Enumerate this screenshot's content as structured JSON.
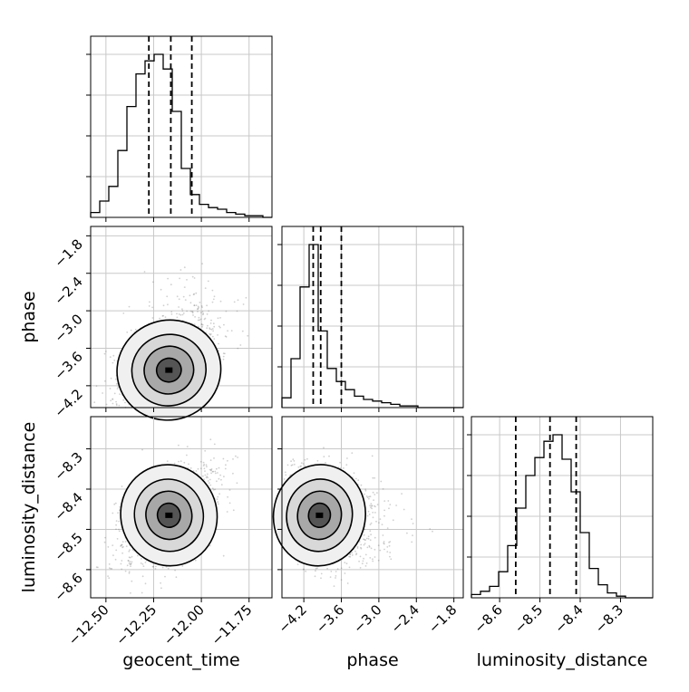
{
  "chart_data": {
    "type": "corner",
    "parameters": [
      "geocent_time",
      "phase",
      "luminosity_distance"
    ],
    "axes": {
      "geocent_time": {
        "range": [
          -12.58,
          -11.63
        ],
        "ticks": [
          -12.5,
          -12.25,
          -12.0,
          -11.75
        ],
        "tick_labels": [
          "−12.50",
          "−12.25",
          "−12.00",
          "−11.75"
        ]
      },
      "phase": {
        "range": [
          -4.55,
          -1.65
        ],
        "ticks": [
          -4.2,
          -3.6,
          -3.0,
          -2.4,
          -1.8
        ],
        "tick_labels": [
          "−4.2",
          "−3.6",
          "−3.0",
          "−2.4",
          "−1.8"
        ]
      },
      "luminosity_distance": {
        "range": [
          -8.67,
          -8.22
        ],
        "ticks": [
          -8.6,
          -8.5,
          -8.4,
          -8.3
        ],
        "tick_labels": [
          "−8.6",
          "−8.5",
          "−8.4",
          "−8.3"
        ]
      }
    },
    "histograms": [
      {
        "parameter": "geocent_time",
        "bin_edges": [
          -12.58,
          -12.5325,
          -12.485,
          -12.4375,
          -12.39,
          -12.3425,
          -12.295,
          -12.2475,
          -12.2,
          -12.1525,
          -12.105,
          -12.0575,
          -12.01,
          -11.9625,
          -11.915,
          -11.8675,
          -11.82,
          -11.7725,
          -11.725,
          -11.6775,
          -11.63
        ],
        "counts": [
          0.03,
          0.1,
          0.19,
          0.41,
          0.68,
          0.88,
          0.96,
          1.0,
          0.91,
          0.65,
          0.3,
          0.14,
          0.08,
          0.06,
          0.05,
          0.03,
          0.02,
          0.01,
          0.01,
          0.0
        ],
        "quantiles": [
          -12.275,
          -12.16,
          -12.05
        ]
      },
      {
        "parameter": "phase",
        "bin_edges": [
          -4.55,
          -4.405,
          -4.26,
          -4.115,
          -3.97,
          -3.825,
          -3.68,
          -3.535,
          -3.39,
          -3.245,
          -3.1,
          -2.955,
          -2.81,
          -2.665,
          -2.52,
          -2.375,
          -2.23,
          -2.085,
          -1.94,
          -1.795,
          -1.65
        ],
        "counts": [
          0.06,
          0.3,
          0.74,
          1.0,
          0.47,
          0.24,
          0.16,
          0.11,
          0.07,
          0.05,
          0.04,
          0.03,
          0.02,
          0.01,
          0.01,
          0.0,
          0.0,
          0.0,
          0.0,
          0.0
        ],
        "quantiles": [
          -4.05,
          -3.93,
          -3.6
        ]
      },
      {
        "parameter": "luminosity_distance",
        "bin_edges": [
          -8.67,
          -8.6475,
          -8.625,
          -8.6025,
          -8.58,
          -8.5575,
          -8.535,
          -8.5125,
          -8.49,
          -8.4675,
          -8.445,
          -8.4225,
          -8.4,
          -8.3775,
          -8.355,
          -8.3325,
          -8.31,
          -8.2875,
          -8.265,
          -8.2425,
          -8.22
        ],
        "counts": [
          0.02,
          0.04,
          0.07,
          0.16,
          0.32,
          0.55,
          0.75,
          0.86,
          0.96,
          1.0,
          0.85,
          0.65,
          0.4,
          0.18,
          0.08,
          0.03,
          0.01,
          0.0,
          0.0,
          0.0
        ],
        "quantiles": [
          -8.56,
          -8.475,
          -8.41
        ]
      }
    ],
    "scatter_panels": [
      {
        "x": "geocent_time",
        "y": "phase",
        "center": [
          -12.17,
          -3.95
        ],
        "spread": [
          0.13,
          0.38
        ],
        "correlation": 0.55
      },
      {
        "x": "geocent_time",
        "y": "luminosity_distance",
        "center": [
          -12.17,
          -8.465
        ],
        "spread": [
          0.12,
          0.06
        ],
        "correlation": 0.45
      },
      {
        "x": "phase",
        "y": "luminosity_distance",
        "center": [
          -3.95,
          -8.465
        ],
        "spread": [
          0.35,
          0.06
        ],
        "correlation": -0.25
      }
    ],
    "xlabels": [
      "geocent_time",
      "phase",
      "luminosity_distance"
    ],
    "ylabels": [
      "",
      "phase",
      "luminosity_distance"
    ],
    "grid": true
  }
}
